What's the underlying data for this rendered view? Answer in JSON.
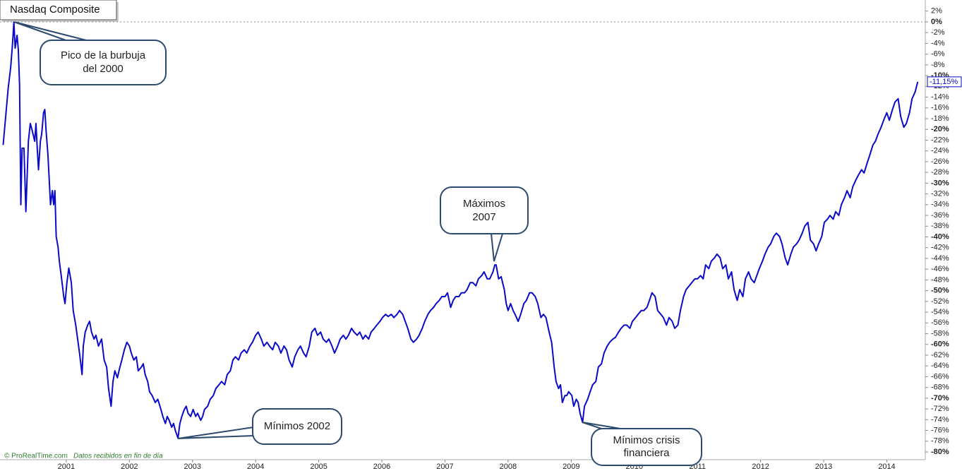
{
  "chart_data": {
    "type": "line",
    "title": "Nasdaq Composite",
    "color": "#0a0ac8",
    "x": [
      2000.0,
      2000.05,
      2000.08,
      2000.12,
      2000.15,
      2000.17,
      2000.19,
      2000.22,
      2000.24,
      2000.26,
      2000.28,
      2000.3,
      2000.33,
      2000.36,
      2000.4,
      2000.43,
      2000.46,
      2000.5,
      2000.52,
      2000.54,
      2000.56,
      2000.59,
      2000.61,
      2000.64,
      2000.66,
      2000.68,
      2000.71,
      2000.73,
      2000.75,
      2000.78,
      2000.8,
      2000.82,
      2000.84,
      2000.87,
      2000.89,
      2000.92,
      2000.96,
      2000.98,
      2001.01,
      2001.04,
      2001.08,
      2001.11,
      2001.15,
      2001.18,
      2001.21,
      2001.25,
      2001.27,
      2001.3,
      2001.34,
      2001.37,
      2001.4,
      2001.44,
      2001.47,
      2001.51,
      2001.56,
      2001.6,
      2001.64,
      2001.67,
      2001.71,
      2001.74,
      2001.77,
      2001.81,
      2001.85,
      2001.88,
      2001.92,
      2001.96,
      2002.0,
      2002.03,
      2002.07,
      2002.11,
      2002.14,
      2002.19,
      2002.22,
      2002.25,
      2002.29,
      2002.32,
      2002.36,
      2002.41,
      2002.45,
      2002.5,
      2002.53,
      2002.57,
      2002.6,
      2002.63,
      2002.67,
      2002.7,
      2002.73,
      2002.77,
      2002.8,
      2002.83,
      2002.87,
      2002.9,
      2002.93,
      2002.97,
      2003.01,
      2003.05,
      2003.08,
      2003.13,
      2003.16,
      2003.19,
      2003.24,
      2003.28,
      2003.33,
      2003.37,
      2003.42,
      2003.46,
      2003.51,
      2003.55,
      2003.6,
      2003.64,
      2003.68,
      2003.73,
      2003.77,
      2003.82,
      2003.86,
      2003.91,
      2003.95,
      2004.0,
      2004.04,
      2004.09,
      2004.13,
      2004.18,
      2004.22,
      2004.27,
      2004.31,
      2004.36,
      2004.4,
      2004.45,
      2004.49,
      2004.53,
      2004.58,
      2004.62,
      2004.67,
      2004.71,
      2004.76,
      2004.8,
      2004.85,
      2004.89,
      2004.94,
      2004.98,
      2005.03,
      2005.07,
      2005.12,
      2005.16,
      2005.21,
      2005.25,
      2005.3,
      2005.34,
      2005.39,
      2005.43,
      2005.47,
      2005.52,
      2005.56,
      2005.61,
      2005.65,
      2005.7,
      2005.74,
      2005.79,
      2005.83,
      2005.88,
      2005.92,
      2005.97,
      2006.01,
      2006.06,
      2006.1,
      2006.15,
      2006.19,
      2006.24,
      2006.28,
      2006.33,
      2006.37,
      2006.41,
      2006.46,
      2006.5,
      2006.55,
      2006.59,
      2006.64,
      2006.68,
      2006.73,
      2006.77,
      2006.82,
      2006.86,
      2006.91,
      2006.95,
      2007.0,
      2007.04,
      2007.09,
      2007.13,
      2007.17,
      2007.22,
      2007.26,
      2007.31,
      2007.35,
      2007.4,
      2007.44,
      2007.49,
      2007.53,
      2007.58,
      2007.62,
      2007.67,
      2007.71,
      2007.76,
      2007.79,
      2007.81,
      2007.85,
      2007.89,
      2007.94,
      2007.97,
      2008.0,
      2008.04,
      2008.08,
      2008.11,
      2008.16,
      2008.2,
      2008.25,
      2008.29,
      2008.34,
      2008.38,
      2008.43,
      2008.47,
      2008.52,
      2008.56,
      2008.6,
      2008.65,
      2008.69,
      2008.73,
      2008.76,
      2008.8,
      2008.83,
      2008.86,
      2008.9,
      2008.93,
      2008.96,
      2009.01,
      2009.04,
      2009.08,
      2009.11,
      2009.14,
      2009.18,
      2009.21,
      2009.26,
      2009.3,
      2009.34,
      2009.39,
      2009.43,
      2009.48,
      2009.52,
      2009.57,
      2009.61,
      2009.66,
      2009.7,
      2009.75,
      2009.79,
      2009.84,
      2009.88,
      2009.93,
      2009.97,
      2010.02,
      2010.06,
      2010.11,
      2010.15,
      2010.2,
      2010.24,
      2010.28,
      2010.33,
      2010.37,
      2010.42,
      2010.46,
      2010.51,
      2010.55,
      2010.6,
      2010.64,
      2010.69,
      2010.73,
      2010.78,
      2010.82,
      2010.87,
      2010.91,
      2010.96,
      2011.0,
      2011.05,
      2011.09,
      2011.13,
      2011.18,
      2011.22,
      2011.27,
      2011.31,
      2011.36,
      2011.4,
      2011.45,
      2011.49,
      2011.54,
      2011.58,
      2011.63,
      2011.67,
      2011.72,
      2011.76,
      2011.81,
      2011.85,
      2011.9,
      2011.94,
      2011.98,
      2012.03,
      2012.07,
      2012.12,
      2012.16,
      2012.21,
      2012.25,
      2012.3,
      2012.34,
      2012.39,
      2012.43,
      2012.48,
      2012.52,
      2012.57,
      2012.61,
      2012.66,
      2012.7,
      2012.75,
      2012.79,
      2012.84,
      2012.88,
      2012.92,
      2012.97,
      2013.01,
      2013.06,
      2013.1,
      2013.15,
      2013.19,
      2013.24,
      2013.28,
      2013.33,
      2013.37,
      2013.42,
      2013.46,
      2013.51,
      2013.55,
      2013.6,
      2013.64,
      2013.69,
      2013.73,
      2013.78,
      2013.82,
      2013.86,
      2013.91,
      2013.95,
      2014.0,
      2014.04,
      2014.09,
      2014.13,
      2014.18,
      2014.22,
      2014.27,
      2014.31,
      2014.36,
      2014.4,
      2014.45,
      2014.49
    ],
    "values": [
      -22.9,
      -16.3,
      -12.3,
      -8.4,
      -3.8,
      0,
      -4.9,
      -2.5,
      -5.1,
      -11.7,
      -34.0,
      -23.5,
      -23.5,
      -35.3,
      -22.2,
      -18.9,
      -20.2,
      -22.2,
      -18.9,
      -23.5,
      -27.5,
      -22.2,
      -20.9,
      -16.9,
      -16.3,
      -20.2,
      -24.8,
      -29.4,
      -34.0,
      -31.4,
      -34.0,
      -31.4,
      -39.9,
      -41.9,
      -44.5,
      -47.2,
      -51.1,
      -52.4,
      -48.5,
      -45.8,
      -48.5,
      -53.7,
      -56.4,
      -59.0,
      -61.6,
      -65.6,
      -60.3,
      -57.7,
      -56.4,
      -55.7,
      -57.7,
      -59.0,
      -58.3,
      -60.3,
      -59.0,
      -62.9,
      -64.2,
      -68.2,
      -71.5,
      -66.9,
      -64.9,
      -66.2,
      -64.2,
      -62.9,
      -61.0,
      -59.6,
      -60.3,
      -61.6,
      -62.9,
      -62.3,
      -64.9,
      -64.2,
      -63.6,
      -65.6,
      -66.9,
      -68.8,
      -69.5,
      -70.8,
      -70.2,
      -72.1,
      -73.4,
      -74.7,
      -73.4,
      -74.1,
      -75.4,
      -74.7,
      -76.1,
      -77.4,
      -74.7,
      -73.4,
      -72.1,
      -71.5,
      -72.8,
      -73.4,
      -72.1,
      -73.4,
      -72.8,
      -74.1,
      -73.4,
      -72.1,
      -71.5,
      -70.2,
      -69.5,
      -68.2,
      -67.5,
      -66.9,
      -67.5,
      -65.6,
      -64.9,
      -62.9,
      -62.3,
      -62.9,
      -61.6,
      -61.0,
      -61.6,
      -60.3,
      -59.6,
      -58.3,
      -57.7,
      -59.0,
      -60.3,
      -59.6,
      -60.3,
      -61.0,
      -59.6,
      -60.3,
      -61.6,
      -60.3,
      -61.0,
      -62.9,
      -64.2,
      -62.3,
      -61.0,
      -60.3,
      -61.6,
      -62.3,
      -60.3,
      -57.7,
      -57.0,
      -58.3,
      -57.7,
      -59.0,
      -59.6,
      -59.0,
      -60.3,
      -61.6,
      -60.3,
      -59.0,
      -58.3,
      -59.0,
      -58.3,
      -57.0,
      -57.7,
      -58.3,
      -57.7,
      -59.0,
      -58.3,
      -59.0,
      -57.7,
      -57.0,
      -56.4,
      -55.7,
      -55.0,
      -54.4,
      -54.8,
      -54.4,
      -55.0,
      -54.4,
      -53.7,
      -54.4,
      -55.7,
      -57.0,
      -59.0,
      -59.6,
      -59.0,
      -58.3,
      -57.0,
      -55.7,
      -54.4,
      -53.7,
      -53.1,
      -52.4,
      -51.8,
      -51.1,
      -51.1,
      -50.4,
      -53.1,
      -51.8,
      -51.1,
      -51.1,
      -50.4,
      -50.4,
      -49.8,
      -48.5,
      -48.5,
      -49.1,
      -47.8,
      -47.2,
      -46.5,
      -47.8,
      -47.8,
      -46.5,
      -45.2,
      -45.2,
      -47.8,
      -47.4,
      -49.8,
      -52.4,
      -53.7,
      -52.4,
      -53.7,
      -54.4,
      -55.7,
      -54.4,
      -52.4,
      -51.8,
      -50.4,
      -50.4,
      -51.1,
      -52.4,
      -55.0,
      -54.4,
      -55.0,
      -57.7,
      -59.6,
      -64.2,
      -66.9,
      -68.2,
      -67.5,
      -70.8,
      -69.5,
      -69.5,
      -68.8,
      -69.5,
      -71.5,
      -70.2,
      -70.8,
      -72.8,
      -74.5,
      -71.5,
      -70.2,
      -68.8,
      -67.5,
      -66.9,
      -64.2,
      -63.6,
      -61.6,
      -60.3,
      -59.6,
      -59.0,
      -58.7,
      -57.7,
      -57.0,
      -56.4,
      -56.4,
      -57.0,
      -55.7,
      -55.0,
      -54.4,
      -53.7,
      -53.7,
      -53.1,
      -51.8,
      -50.4,
      -51.1,
      -53.7,
      -54.4,
      -55.0,
      -56.4,
      -55.0,
      -55.7,
      -57.0,
      -56.4,
      -53.7,
      -51.1,
      -49.8,
      -49.1,
      -48.5,
      -47.8,
      -47.8,
      -47.2,
      -47.8,
      -45.2,
      -45.9,
      -44.5,
      -43.9,
      -43.2,
      -43.9,
      -45.9,
      -45.2,
      -47.8,
      -46.5,
      -49.8,
      -51.8,
      -49.8,
      -51.1,
      -47.8,
      -46.5,
      -47.8,
      -48.5,
      -47.2,
      -45.9,
      -44.5,
      -43.2,
      -41.9,
      -41.3,
      -39.9,
      -39.3,
      -39.9,
      -41.3,
      -43.9,
      -45.2,
      -43.2,
      -41.9,
      -41.3,
      -40.6,
      -39.3,
      -38.0,
      -37.3,
      -40.6,
      -41.3,
      -42.6,
      -41.3,
      -39.9,
      -37.3,
      -36.7,
      -36.0,
      -36.7,
      -35.3,
      -36.0,
      -34.0,
      -32.7,
      -31.4,
      -32.7,
      -30.7,
      -29.4,
      -28.5,
      -27.5,
      -28.1,
      -26.2,
      -24.8,
      -22.9,
      -22.2,
      -20.9,
      -19.6,
      -18.3,
      -16.9,
      -18.3,
      -16.3,
      -14.9,
      -14.3,
      -17.6,
      -19.6,
      -18.9,
      -16.9,
      -14.3,
      -13.0,
      -11.15
    ],
    "last_label": "-11,15%",
    "xlim": [
      1999.95,
      2014.61
    ],
    "xticks": [
      2001,
      2002,
      2003,
      2004,
      2005,
      2006,
      2007,
      2008,
      2009,
      2010,
      2011,
      2012,
      2013,
      2014
    ],
    "ylim": [
      -81.31,
      4.07
    ],
    "yticks": [
      {
        "value": 2,
        "label": "2%"
      },
      {
        "value": 0,
        "label": "0%"
      },
      {
        "value": -2,
        "label": "-2%"
      },
      {
        "value": -4,
        "label": "-4%"
      },
      {
        "value": -6,
        "label": "-6%"
      },
      {
        "value": -8,
        "label": "-8%"
      },
      {
        "value": -10,
        "label": "-10%"
      },
      {
        "value": -12,
        "label": "-12%"
      },
      {
        "value": -14,
        "label": "-14%"
      },
      {
        "value": -16,
        "label": "-16%"
      },
      {
        "value": -18,
        "label": "-18%"
      },
      {
        "value": -20,
        "label": "-20%"
      },
      {
        "value": -22,
        "label": "-22%"
      },
      {
        "value": -24,
        "label": "-24%"
      },
      {
        "value": -26,
        "label": "-26%"
      },
      {
        "value": -28,
        "label": "-28%"
      },
      {
        "value": -30,
        "label": "-30%"
      },
      {
        "value": -32,
        "label": "-32%"
      },
      {
        "value": -34,
        "label": "-34%"
      },
      {
        "value": -36,
        "label": "-36%"
      },
      {
        "value": -38,
        "label": "-38%"
      },
      {
        "value": -40,
        "label": "-40%"
      },
      {
        "value": -42,
        "label": "-42%"
      },
      {
        "value": -44,
        "label": "-44%"
      },
      {
        "value": -46,
        "label": "-46%"
      },
      {
        "value": -48,
        "label": "-48%"
      },
      {
        "value": -50,
        "label": "-50%"
      },
      {
        "value": -52,
        "label": "-52%"
      },
      {
        "value": -54,
        "label": "-54%"
      },
      {
        "value": -56,
        "label": "-56%"
      },
      {
        "value": -58,
        "label": "-58%"
      },
      {
        "value": -60,
        "label": "-60%"
      },
      {
        "value": -62,
        "label": "-62%"
      },
      {
        "value": -64,
        "label": "-64%"
      },
      {
        "value": -66,
        "label": "-66%"
      },
      {
        "value": -68,
        "label": "-68%"
      },
      {
        "value": -70,
        "label": "-70%"
      },
      {
        "value": -72,
        "label": "-72%"
      },
      {
        "value": -74,
        "label": "-74%"
      },
      {
        "value": -76,
        "label": "-76%"
      },
      {
        "value": -78,
        "label": "-78%"
      },
      {
        "value": -80,
        "label": "-80%"
      }
    ],
    "reference_line": 0,
    "annotations": [
      {
        "lines": [
          "Pico de la burbuja",
          "del 2000"
        ]
      },
      {
        "lines": [
          "Máximos",
          "2007"
        ]
      },
      {
        "lines": [
          "Mínimos 2002"
        ]
      },
      {
        "lines": [
          "Mínimos crisis",
          "financiera"
        ]
      }
    ],
    "source": "© ProRealTime.com",
    "source_note": "Datos recibidos en fin de día"
  }
}
